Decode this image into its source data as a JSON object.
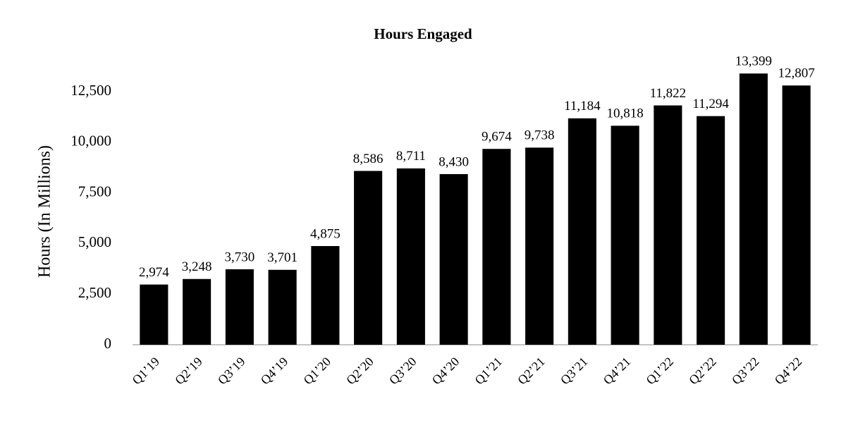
{
  "chart_data": {
    "type": "bar",
    "title": "Hours Engaged",
    "y_label": "Hours (In Millions)",
    "categories": [
      "Q1’19",
      "Q2’19",
      "Q3’19",
      "Q4’19",
      "Q1’20",
      "Q2’20",
      "Q3’20",
      "Q4’20",
      "Q1’21",
      "Q2’21",
      "Q3’21",
      "Q4’21",
      "Q1’22",
      "Q2’22",
      "Q3’22",
      "Q4’22"
    ],
    "values": [
      2974,
      3248,
      3730,
      3701,
      4875,
      8586,
      8711,
      8430,
      9674,
      9738,
      11184,
      10818,
      11822,
      11294,
      13399,
      12807
    ],
    "value_labels": [
      "2,974",
      "3,248",
      "3,730",
      "3,701",
      "4,875",
      "8,586",
      "8,711",
      "8,430",
      "9,674",
      "9,738",
      "11,184",
      "10,818",
      "11,822",
      "11,294",
      "13,399",
      "12,807"
    ],
    "color": "#000000",
    "ylim": [
      0,
      14000
    ],
    "yticks": [
      0,
      {
        "value": 2500,
        "label": "2,500"
      },
      {
        "value": 5000,
        "label": "5,000"
      },
      {
        "value": 7500,
        "label": "7,500"
      },
      {
        "value": 10000,
        "label": "10,000"
      },
      {
        "value": 12500,
        "label": "12,500"
      }
    ],
    "grid": false
  }
}
